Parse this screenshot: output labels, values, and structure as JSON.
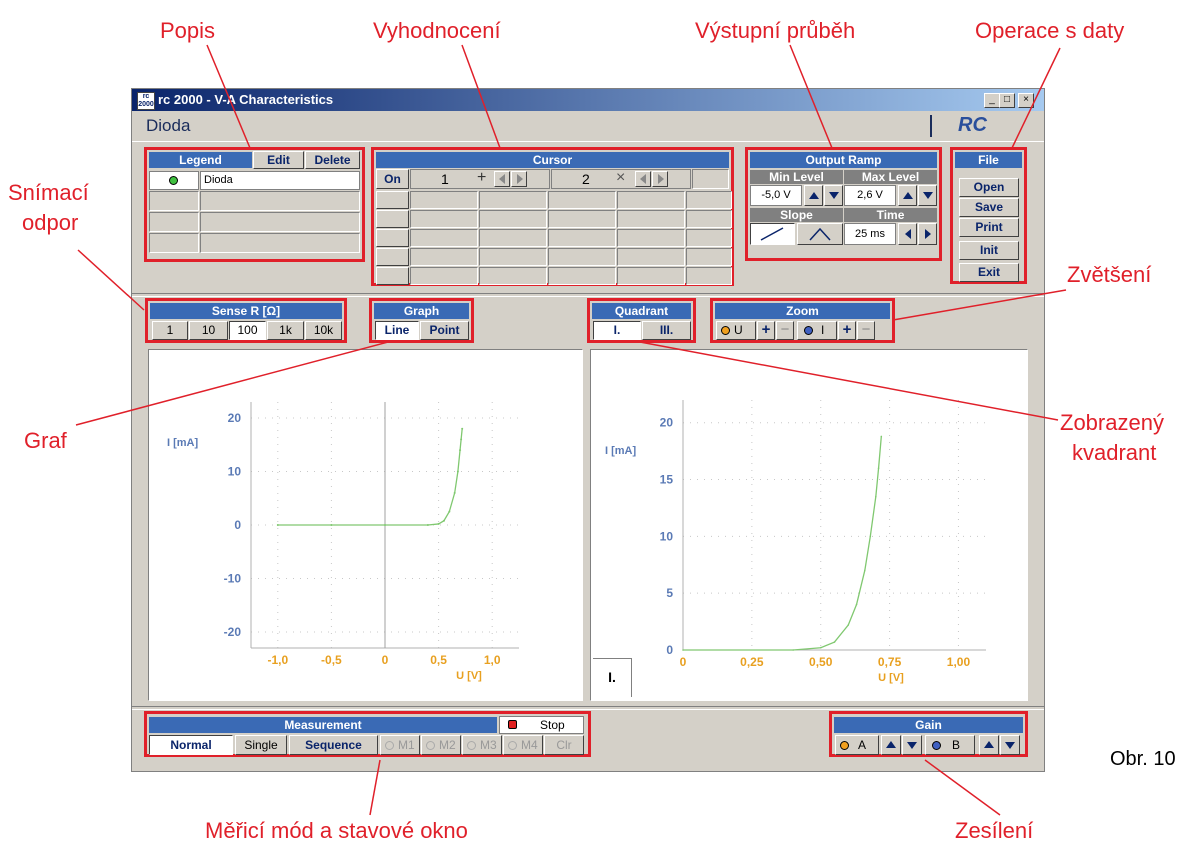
{
  "window": {
    "title": "rc 2000 - V-A Characteristics",
    "doc_title": "Dioda",
    "logo": "RC",
    "app_icon_text": "rc 2000",
    "min_glyph": "_",
    "max_glyph": "□",
    "close_glyph": "×"
  },
  "annotations": {
    "popis": "Popis",
    "vyhodnoceni": "Vyhodnocení",
    "vystupni": "Výstupní průběh",
    "operace": "Operace s daty",
    "snimaci_1": "Snímací",
    "snimaci_2": "odpor",
    "zvetseni": "Zvětšení",
    "graf": "Graf",
    "zobrazeny_1": "Zobrazený",
    "zobrazeny_2": "kvadrant",
    "obr": "Obr. 10",
    "merici": "Měřicí mód a stavové okno",
    "zesileni": "Zesílení"
  },
  "legend": {
    "title": "Legend",
    "edit": "Edit",
    "delete": "Delete",
    "entries": [
      "Dioda",
      "",
      "",
      ""
    ]
  },
  "cursor": {
    "title": "Cursor",
    "on": "On",
    "c1": "1",
    "c1_symbol": "+",
    "c2": "2",
    "c2_symbol": "×"
  },
  "output_ramp": {
    "title": "Output Ramp",
    "min_level": "Min Level",
    "max_level": "Max Level",
    "min_value": "-5,0 V",
    "max_value": "2,6 V",
    "slope": "Slope",
    "time": "Time",
    "time_value": "25 ms"
  },
  "file": {
    "title": "File",
    "open": "Open",
    "save": "Save",
    "print": "Print",
    "init": "Init",
    "exit": "Exit"
  },
  "sense_r": {
    "title": "Sense R  [Ω]",
    "options": [
      "1",
      "10",
      "100",
      "1k",
      "10k"
    ],
    "selected": "100"
  },
  "graph": {
    "title": "Graph",
    "line": "Line",
    "point": "Point"
  },
  "quadrant": {
    "title": "Quadrant",
    "q1": "I.",
    "q3": "III."
  },
  "zoom": {
    "title": "Zoom",
    "u": "U",
    "i": "I",
    "plus": "+",
    "minus": "−"
  },
  "measurement": {
    "title": "Measurement",
    "status": "Stop",
    "normal": "Normal",
    "single": "Single",
    "sequence": "Sequence",
    "m1": "M1",
    "m2": "M2",
    "m3": "M3",
    "m4": "M4",
    "clr": "Clr"
  },
  "gain": {
    "title": "Gain",
    "a": "A",
    "b": "B"
  },
  "chart_data": [
    {
      "type": "line",
      "xlabel": "U [V]",
      "ylabel": "I [mA]",
      "xlim": [
        -1.25,
        1.25
      ],
      "ylim": [
        -23,
        23
      ],
      "xticks": [
        "-1,0",
        "-0,5",
        "0",
        "0,5",
        "1,0"
      ],
      "yticks": [
        "20",
        "10",
        "0",
        "-10",
        "-20"
      ],
      "series": [
        {
          "color": "#80c870",
          "x": [
            -1.0,
            -0.5,
            0.0,
            0.4,
            0.5,
            0.55,
            0.6,
            0.65,
            0.68,
            0.7,
            0.71,
            0.72
          ],
          "y": [
            0,
            0,
            0,
            0,
            0.2,
            0.8,
            2.5,
            6,
            10,
            14,
            16,
            18
          ]
        }
      ]
    },
    {
      "type": "line",
      "xlabel": "U [V]",
      "ylabel": "I [mA]",
      "xlim": [
        0,
        1.1
      ],
      "ylim": [
        0,
        22
      ],
      "xticks": [
        "0",
        "0,25",
        "0,50",
        "0,75",
        "1,00"
      ],
      "yticks": [
        "20",
        "15",
        "10",
        "5",
        "0"
      ],
      "quadrant_label": "I.",
      "series": [
        {
          "color": "#80c870",
          "x": [
            0.0,
            0.4,
            0.5,
            0.55,
            0.6,
            0.63,
            0.66,
            0.68,
            0.7,
            0.71,
            0.72
          ],
          "y": [
            0,
            0,
            0.2,
            0.7,
            2.2,
            4,
            7,
            10,
            13.5,
            16,
            18.8
          ]
        }
      ]
    }
  ]
}
